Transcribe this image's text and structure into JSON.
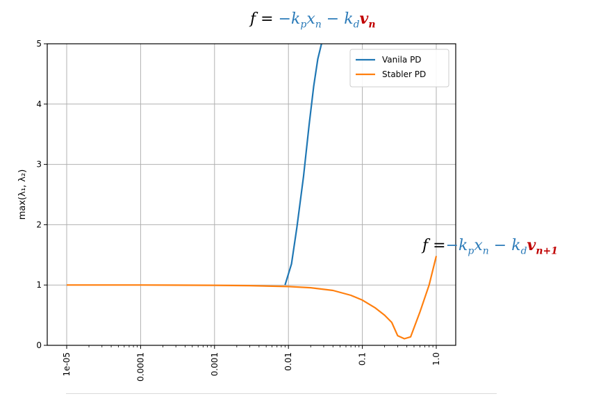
{
  "equations": {
    "top": {
      "f": "f",
      "eq": "=",
      "minus1": "−",
      "kp": "k",
      "kp_sub": "p",
      "xn": "x",
      "xn_sub": "n",
      "minus2": "−",
      "kd": "k",
      "kd_sub": "d",
      "v": "v",
      "v_sub": "n"
    },
    "side": {
      "f": "f",
      "eq": "=",
      "minus1": "−",
      "kp": "k",
      "kp_sub": "p",
      "xn": "x",
      "xn_sub": "n",
      "minus2": "−",
      "kd": "k",
      "kd_sub": "d",
      "v": "v",
      "v_sub": "n+1"
    }
  },
  "colors": {
    "vanilla": "#1f77b4",
    "stabler": "#ff7f0e",
    "grid": "#b0b0b0",
    "eq_blue": "#2a7ab8",
    "eq_red": "#c00000"
  },
  "chart_data": {
    "type": "line",
    "xscale": "log",
    "xlim": [
      1e-05,
      1.0
    ],
    "ylim": [
      0,
      5
    ],
    "xticks": [
      {
        "value": 1e-05,
        "label": "1e-05"
      },
      {
        "value": 0.0001,
        "label": "0.0001"
      },
      {
        "value": 0.001,
        "label": "0.001"
      },
      {
        "value": 0.01,
        "label": "0.01"
      },
      {
        "value": 0.1,
        "label": "0.1"
      },
      {
        "value": 1.0,
        "label": "1.0"
      }
    ],
    "yticks": [
      0,
      1,
      2,
      3,
      4,
      5
    ],
    "xlabel": "",
    "ylabel": "max(λ₁, λ₂)",
    "grid": true,
    "legend": "top-right",
    "series": [
      {
        "name": "Vanila PD",
        "color": "#1f77b4",
        "x": [
          0.009,
          0.011,
          0.013,
          0.016,
          0.019,
          0.022,
          0.025,
          0.028
        ],
        "y": [
          1.0,
          1.35,
          1.95,
          2.8,
          3.65,
          4.3,
          4.75,
          5.0
        ]
      },
      {
        "name": "Stabler PD",
        "color": "#ff7f0e",
        "x": [
          1e-05,
          0.0001,
          0.001,
          0.003,
          0.01,
          0.02,
          0.04,
          0.07,
          0.1,
          0.15,
          0.2,
          0.25,
          0.3,
          0.37,
          0.45,
          0.6,
          0.8,
          1.0
        ],
        "y": [
          1.0,
          1.0,
          0.995,
          0.99,
          0.975,
          0.955,
          0.91,
          0.83,
          0.75,
          0.62,
          0.5,
          0.38,
          0.16,
          0.11,
          0.14,
          0.55,
          1.0,
          1.48
        ]
      }
    ]
  }
}
